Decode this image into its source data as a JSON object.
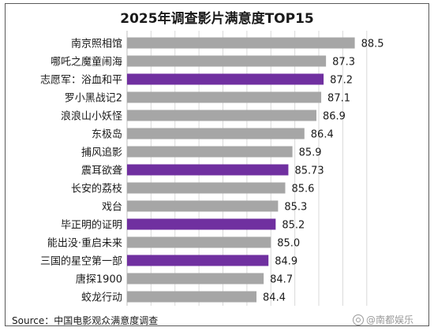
{
  "chart_data": {
    "type": "bar",
    "orientation": "horizontal",
    "title": "2025年调查影片满意度TOP15",
    "categories": [
      "南京照相馆",
      "哪吒之魔童闹海",
      "志愿军：浴血和平",
      "罗小黑战记2",
      "浪浪山小妖怪",
      "东极岛",
      "捕风追影",
      "震耳欲聋",
      "长安的荔枝",
      "戏台",
      "毕正明的证明",
      "能出没·重启未来",
      "三国的星空第一部",
      "唐探1900",
      "蛟龙行动"
    ],
    "values": [
      88.5,
      87.3,
      87.2,
      87.1,
      86.9,
      86.4,
      85.9,
      85.73,
      85.6,
      85.3,
      85.2,
      85.0,
      84.9,
      84.7,
      84.4
    ],
    "value_labels": [
      "88.5",
      "87.3",
      "87.2",
      "87.1",
      "86.9",
      "86.4",
      "85.9",
      "85.73",
      "85.6",
      "85.3",
      "85.2",
      "85.0",
      "84.9",
      "84.7",
      "84.4"
    ],
    "highlighted": [
      "志愿军：浴血和平",
      "震耳欲聋",
      "毕正明的证明",
      "三国的星空第一部"
    ],
    "colors": {
      "default": "#a6a6a6",
      "highlight": "#7030a0",
      "grid": "#d9d9d9"
    },
    "xlim": [
      79,
      89.6
    ],
    "grid": true,
    "legend": "none"
  },
  "source_text": "Source：中国电影观众满意度调查",
  "watermark_text": "@南都娱乐"
}
